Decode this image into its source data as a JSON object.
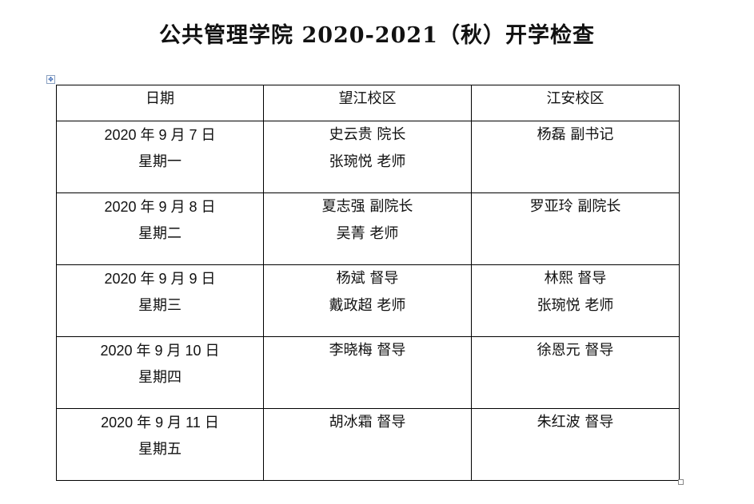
{
  "title": "公共管理学院 2020-2021（秋）开学检查",
  "table": {
    "headers": [
      "日期",
      "望江校区",
      "江安校区"
    ],
    "rows": [
      {
        "date": "2020 年 9 月 7 日",
        "weekday": "星期一",
        "wangjiang": [
          "史云贵  院长",
          "张琬悦  老师"
        ],
        "jiangan": [
          "杨磊  副书记"
        ]
      },
      {
        "date": "2020 年 9 月 8 日",
        "weekday": "星期二",
        "wangjiang": [
          "夏志强  副院长",
          "吴菁  老师"
        ],
        "jiangan": [
          "罗亚玲  副院长"
        ]
      },
      {
        "date": "2020 年 9 月 9 日",
        "weekday": "星期三",
        "wangjiang": [
          "杨斌  督导",
          "戴政超  老师"
        ],
        "jiangan": [
          "林熙  督导",
          "张琬悦  老师"
        ]
      },
      {
        "date": "2020 年 9 月 10 日",
        "weekday": "星期四",
        "wangjiang": [
          "李晓梅  督导"
        ],
        "jiangan": [
          "徐恩元  督导"
        ]
      },
      {
        "date": "2020 年 9 月 11 日",
        "weekday": "星期五",
        "wangjiang": [
          "胡冰霜  督导"
        ],
        "jiangan": [
          "朱红波  督导"
        ]
      }
    ]
  }
}
